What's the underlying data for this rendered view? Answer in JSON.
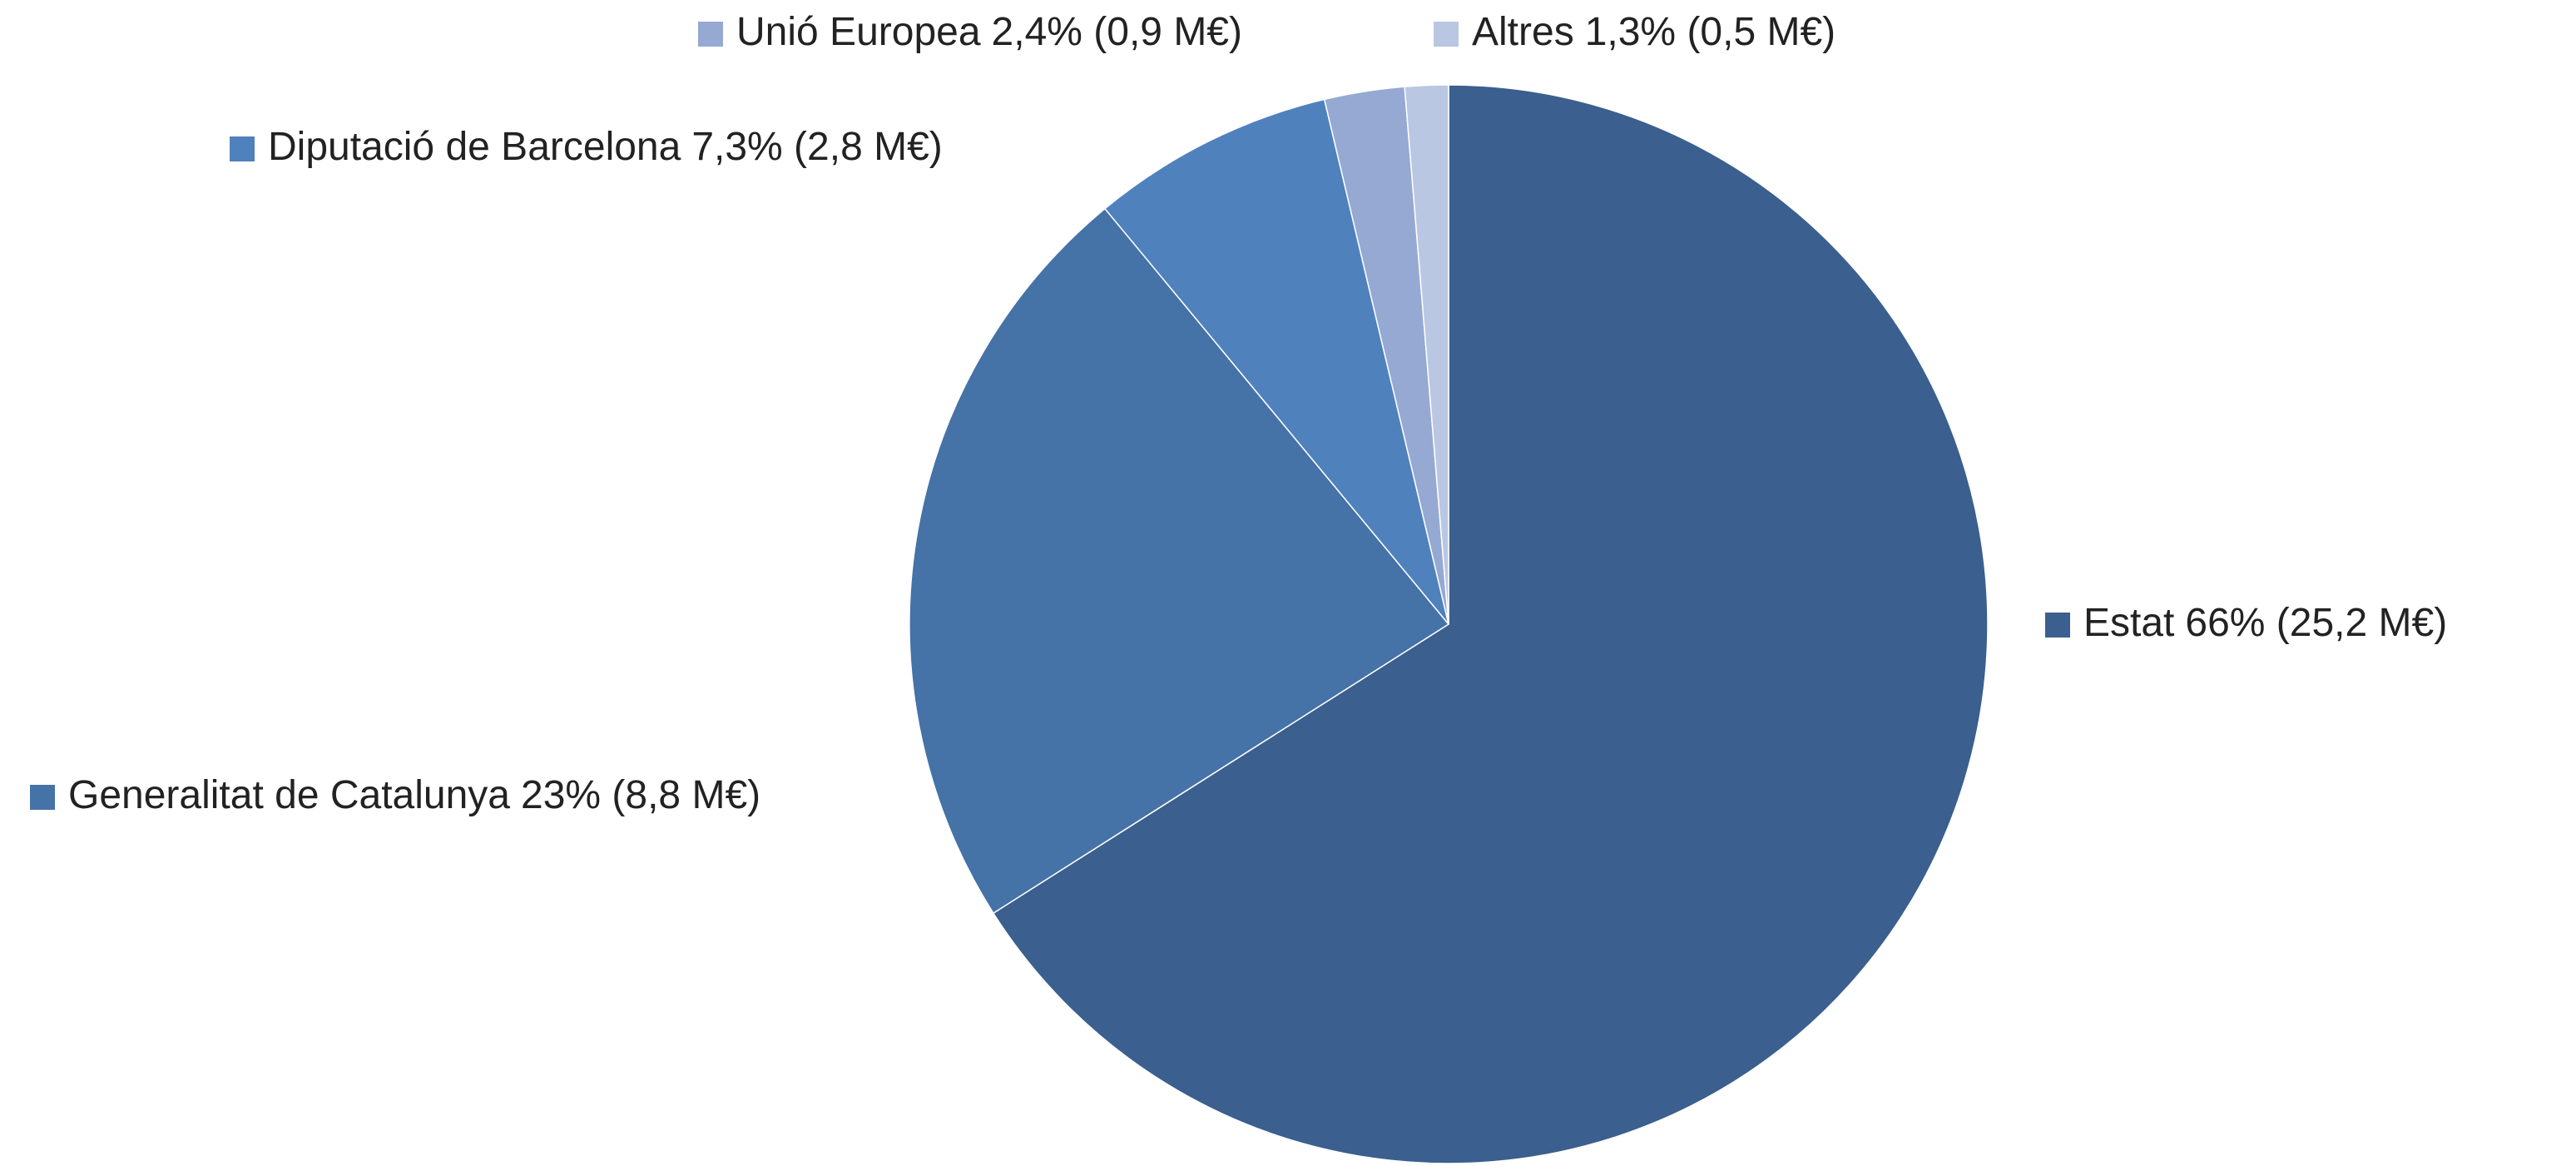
{
  "chart_data": {
    "type": "pie",
    "categories": [
      "Estat",
      "Generalitat de Catalunya",
      "Diputació de Barcelona",
      "Unió Europea",
      "Altres"
    ],
    "values": [
      66,
      23,
      7.3,
      2.4,
      1.3
    ],
    "value_labels": [
      "66% (25,2 M€)",
      "23% (8,8 M€)",
      "7,3% (2,8 M€)",
      "2,4% (0,9 M€)",
      "1,3% (0,5 M€)"
    ],
    "colors": [
      "#3b5f8e",
      "#4572a7",
      "#4f81bd",
      "#95a9d2",
      "#b9c7e3"
    ]
  }
}
